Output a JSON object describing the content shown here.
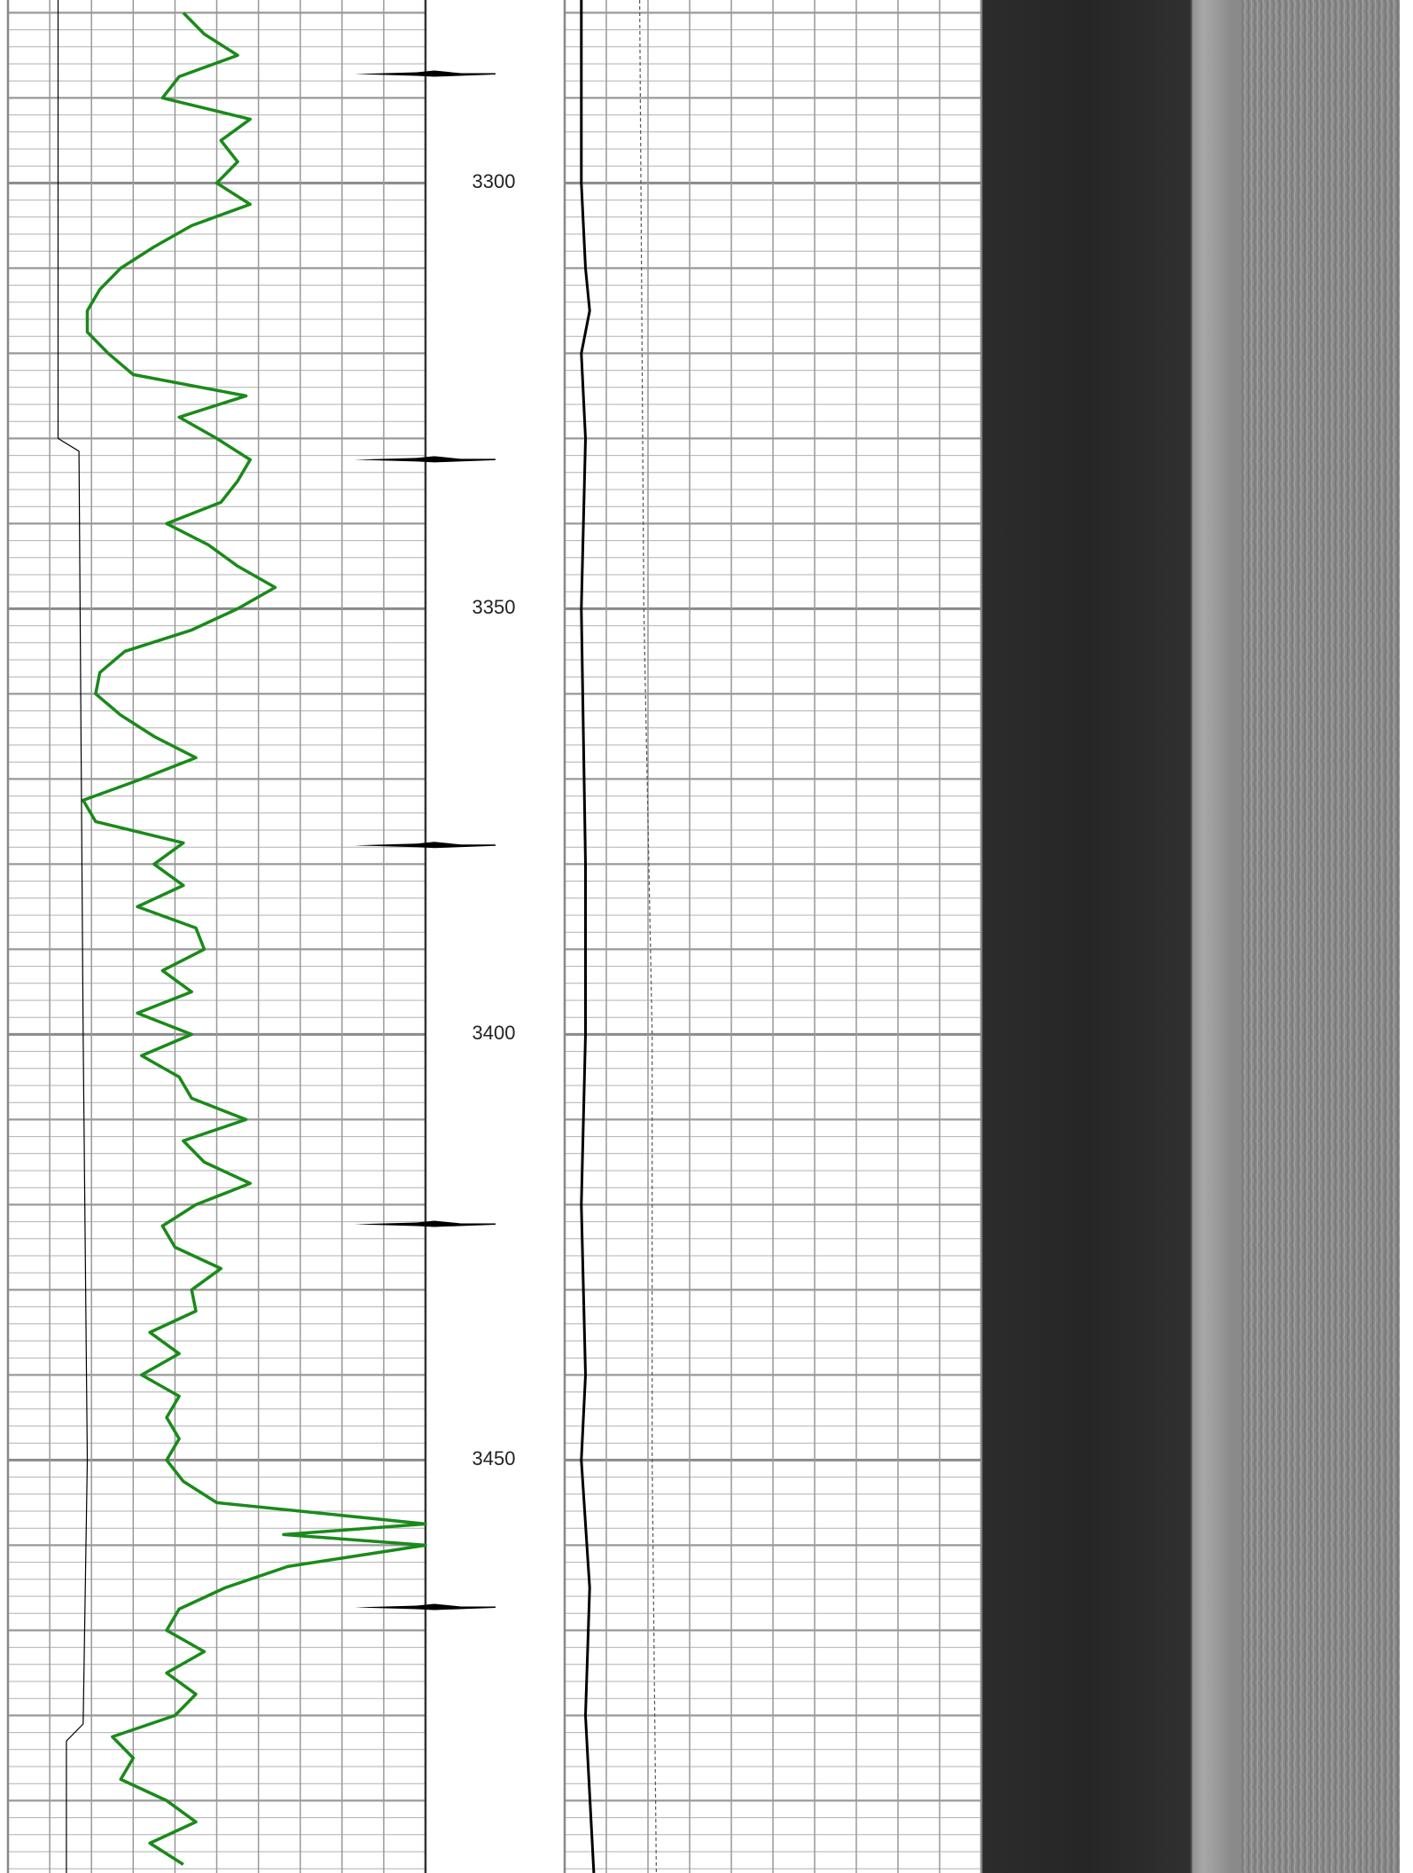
{
  "log": {
    "depth_range": [
      3278.5,
      3498.5
    ],
    "depth_labels": [
      3300,
      3350,
      3400,
      3450
    ],
    "markers": [
      3287.2,
      3332.5,
      3377.8,
      3422.3,
      3467.3
    ],
    "tracks": [
      {
        "xlim": [
          0,
          100
        ],
        "curves": [
          {
            "color": "#1a8a1a",
            "width": 3.5,
            "dash": false,
            "depths": [
              3280,
              3282.5,
              3285,
              3287.5,
              3290,
              3292.5,
              3295,
              3297.5,
              3300,
              3302.5,
              3305,
              3307.5,
              3310,
              3312.5,
              3315,
              3317.5,
              3320,
              3322.5,
              3325,
              3327.5,
              3330,
              3332.5,
              3335,
              3337.5,
              3340,
              3342.5,
              3345,
              3347.5,
              3350,
              3352.5,
              3355,
              3357.5,
              3360,
              3362.5,
              3365,
              3367.5,
              3370,
              3372.5,
              3375,
              3377.5,
              3380,
              3382.5,
              3385,
              3387.5,
              3390,
              3392.5,
              3395,
              3397.5,
              3400,
              3402.5,
              3405,
              3407.5,
              3410,
              3412.5,
              3415,
              3417.5,
              3420,
              3422.5,
              3425,
              3427.5,
              3430,
              3432.5,
              3435,
              3437.5,
              3440,
              3442.5,
              3445,
              3447.5,
              3450,
              3452.5,
              3455,
              3457.5,
              3458.75,
              3460,
              3462.5,
              3465,
              3467.5,
              3470,
              3472.5,
              3475,
              3477.5,
              3480,
              3482.5,
              3485,
              3487.5,
              3490,
              3492.5,
              3495,
              3497.5
            ],
            "values": [
              42,
              47,
              55,
              41,
              37,
              58,
              51,
              55,
              50,
              58,
              44,
              35,
              27,
              22,
              19,
              19,
              24,
              30,
              57,
              41,
              50,
              58,
              55,
              51,
              38,
              48,
              55,
              64,
              55,
              44,
              28,
              22,
              21,
              27,
              35,
              45,
              32,
              18,
              21,
              42,
              35,
              42,
              31,
              45,
              47,
              37,
              44,
              31,
              44,
              32,
              41,
              44,
              57,
              42,
              47,
              58,
              45,
              37,
              40,
              51,
              44,
              45,
              34,
              41,
              32,
              41,
              38,
              41,
              38,
              42,
              50,
              100,
              66,
              100,
              67,
              52,
              41,
              38,
              47,
              38,
              45,
              40,
              25,
              30,
              27,
              38,
              45,
              34,
              42
            ]
          },
          {
            "color": "#000000",
            "width": 1.2,
            "dash": false,
            "depths": [
              3278.5,
              3330,
              3331.5,
              3400,
              3450,
              3481,
              3483,
              3498.5
            ],
            "values": [
              12,
              12,
              17,
              18,
              19,
              18,
              14,
              14
            ]
          }
        ]
      },
      {
        "xlim": [
          0,
          100
        ],
        "curves": [
          {
            "color": "#000000",
            "width": 3,
            "dash": false,
            "depths": [
              3278.5,
              3290,
              3300,
              3310,
              3315,
              3320,
              3330,
              3350,
              3380,
              3400,
              3420,
              3440,
              3450,
              3465,
              3480,
              3498.5
            ],
            "values": [
              4,
              4,
              4,
              5,
              6,
              4,
              5,
              4,
              5,
              5,
              4,
              5,
              4,
              6,
              5,
              7
            ]
          },
          {
            "color": "#555555",
            "width": 1.2,
            "dash": true,
            "depths": [
              3278.5,
              3350,
              3400,
              3450,
              3498.5
            ],
            "values": [
              18,
              19,
              21,
              21,
              22
            ]
          }
        ]
      }
    ]
  }
}
